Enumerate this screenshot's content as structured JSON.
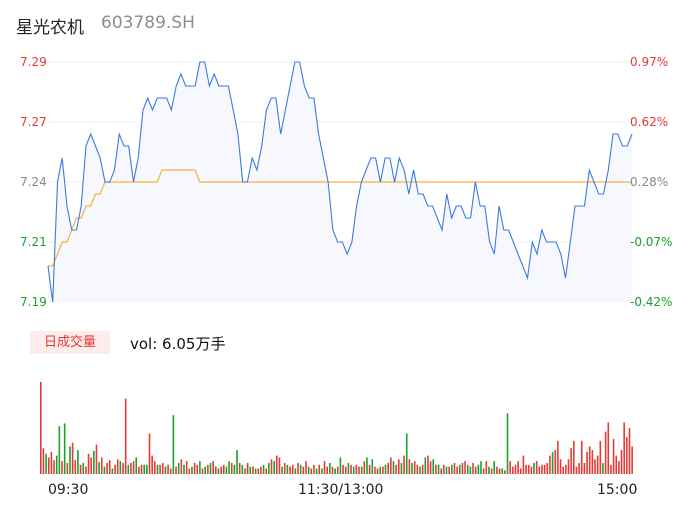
{
  "header": {
    "name": "星光农机",
    "code": "603789.SH"
  },
  "volume_panel": {
    "badge_label": "日成交量",
    "vol_text": "vol: 6.05万手"
  },
  "colors": {
    "price_line": "#3b7be0",
    "avg_line": "#f5b13d",
    "up": "#e53935",
    "down": "#18a12c",
    "area_fill": "#f6f8fd",
    "neutral_text": "#888888"
  },
  "chart_data": [
    {
      "type": "line",
      "title": "",
      "y_left_ticks": [
        "7.29",
        "7.27",
        "7.24",
        "7.21",
        "7.19"
      ],
      "y_right_ticks": [
        "0.97%",
        "0.62%",
        "0.28%",
        "-0.07%",
        "-0.42%"
      ],
      "ylim": [
        7.19,
        7.29
      ],
      "x_ticks": [
        "09:30",
        "11:30/13:00",
        "15:00"
      ],
      "series": [
        {
          "role": "price",
          "values": [
            7.205,
            7.19,
            7.24,
            7.25,
            7.23,
            7.22,
            7.22,
            7.23,
            7.255,
            7.26,
            7.255,
            7.25,
            7.24,
            7.24,
            7.245,
            7.26,
            7.255,
            7.255,
            7.24,
            7.25,
            7.27,
            7.275,
            7.27,
            7.275,
            7.275,
            7.275,
            7.27,
            7.28,
            7.285,
            7.28,
            7.28,
            7.28,
            7.29,
            7.29,
            7.28,
            7.285,
            7.28,
            7.28,
            7.28,
            7.27,
            7.26,
            7.24,
            7.24,
            7.25,
            7.245,
            7.255,
            7.27,
            7.275,
            7.275,
            7.26,
            7.27,
            7.28,
            7.29,
            7.29,
            7.28,
            7.275,
            7.275,
            7.26,
            7.25,
            7.24,
            7.22,
            7.215,
            7.215,
            7.21,
            7.215,
            7.23,
            7.24,
            7.245,
            7.25,
            7.25,
            7.24,
            7.25,
            7.25,
            7.24,
            7.25,
            7.245,
            7.235,
            7.245,
            7.235,
            7.235,
            7.23,
            7.23,
            7.225,
            7.22,
            7.235,
            7.225,
            7.23,
            7.23,
            7.225,
            7.225,
            7.24,
            7.23,
            7.23,
            7.215,
            7.21,
            7.23,
            7.22,
            7.22,
            7.215,
            7.21,
            7.205,
            7.2,
            7.215,
            7.21,
            7.22,
            7.215,
            7.215,
            7.215,
            7.21,
            7.2,
            7.215,
            7.23,
            7.23,
            7.23,
            7.245,
            7.24,
            7.235,
            7.235,
            7.245,
            7.26,
            7.26,
            7.255,
            7.255,
            7.26
          ]
        },
        {
          "role": "average",
          "values": [
            7.205,
            7.205,
            7.21,
            7.215,
            7.215,
            7.22,
            7.225,
            7.225,
            7.23,
            7.23,
            7.235,
            7.235,
            7.24,
            7.24,
            7.24,
            7.24,
            7.24,
            7.24,
            7.24,
            7.24,
            7.24,
            7.24,
            7.24,
            7.24,
            7.245,
            7.245,
            7.245,
            7.245,
            7.245,
            7.245,
            7.245,
            7.245,
            7.24,
            7.24,
            7.24,
            7.24,
            7.24,
            7.24,
            7.24,
            7.24,
            7.24,
            7.24,
            7.24,
            7.24,
            7.24,
            7.24,
            7.24,
            7.24,
            7.24,
            7.24,
            7.24,
            7.24,
            7.24,
            7.24,
            7.24,
            7.24,
            7.24,
            7.24,
            7.24,
            7.24,
            7.24,
            7.24,
            7.24,
            7.24,
            7.24,
            7.24,
            7.24,
            7.24,
            7.24,
            7.24,
            7.24,
            7.24,
            7.24,
            7.24,
            7.24,
            7.24,
            7.24,
            7.24,
            7.24,
            7.24,
            7.24,
            7.24,
            7.24,
            7.24,
            7.24,
            7.24,
            7.24,
            7.24,
            7.24,
            7.24,
            7.24,
            7.24,
            7.24,
            7.24,
            7.24,
            7.24,
            7.24,
            7.24,
            7.24,
            7.24,
            7.24,
            7.24,
            7.24,
            7.24,
            7.24,
            7.24,
            7.24,
            7.24,
            7.24,
            7.24,
            7.24,
            7.24,
            7.24,
            7.24,
            7.24,
            7.24,
            7.24,
            7.24,
            7.24,
            7.24,
            7.24,
            7.24,
            7.24,
            7.24
          ]
        }
      ]
    },
    {
      "type": "bar",
      "title": "",
      "ylim": [
        0,
        100
      ],
      "values": [
        100,
        28,
        22,
        18,
        24,
        15,
        20,
        52,
        14,
        55,
        12,
        30,
        34,
        15,
        26,
        10,
        12,
        8,
        22,
        18,
        25,
        32,
        13,
        18,
        8,
        12,
        15,
        6,
        10,
        16,
        14,
        12,
        82,
        10,
        12,
        14,
        18,
        8,
        10,
        10,
        10,
        44,
        20,
        14,
        10,
        10,
        12,
        8,
        10,
        6,
        64,
        8,
        12,
        16,
        10,
        14,
        6,
        8,
        12,
        10,
        14,
        6,
        8,
        10,
        12,
        14,
        8,
        6,
        8,
        10,
        8,
        14,
        12,
        10,
        26,
        12,
        10,
        6,
        12,
        8,
        8,
        6,
        6,
        8,
        10,
        6,
        12,
        16,
        14,
        20,
        18,
        8,
        12,
        10,
        8,
        10,
        6,
        12,
        10,
        8,
        14,
        8,
        6,
        10,
        6,
        10,
        6,
        14,
        8,
        12,
        8,
        6,
        8,
        18,
        10,
        8,
        12,
        10,
        8,
        10,
        8,
        8,
        14,
        18,
        10,
        16,
        8,
        6,
        8,
        8,
        10,
        12,
        18,
        14,
        10,
        16,
        12,
        20,
        44,
        16,
        12,
        14,
        10,
        8,
        10,
        18,
        20,
        14,
        16,
        10,
        10,
        6,
        10,
        8,
        8,
        10,
        12,
        8,
        10,
        12,
        14,
        10,
        8,
        12,
        8,
        10,
        14,
        6,
        14,
        8,
        6,
        14,
        8,
        6,
        6,
        4,
        66,
        14,
        8,
        10,
        14,
        6,
        20,
        10,
        10,
        8,
        12,
        14,
        8,
        10,
        10,
        12,
        20,
        24,
        26,
        36,
        16,
        8,
        10,
        16,
        28,
        36,
        8,
        12,
        36,
        12,
        24,
        30,
        26,
        16,
        20,
        36,
        12,
        46,
        56,
        10,
        38,
        20,
        14,
        26,
        56,
        40,
        50,
        30
      ],
      "value_colors": [
        "up",
        "up",
        "down",
        "up",
        "up",
        "up",
        "down",
        "down",
        "up",
        "down",
        "up",
        "down",
        "up",
        "up",
        "down",
        "up",
        "down",
        "up",
        "up",
        "up",
        "down",
        "up",
        "down",
        "up",
        "down",
        "up",
        "up",
        "down",
        "up",
        "up",
        "down",
        "up",
        "up",
        "down",
        "up",
        "up",
        "down",
        "up",
        "up",
        "down",
        "down",
        "up",
        "up",
        "up",
        "down",
        "up",
        "up",
        "down",
        "up",
        "up",
        "down",
        "up",
        "down",
        "up",
        "down",
        "up",
        "up",
        "down",
        "up",
        "up",
        "down",
        "up",
        "down",
        "up",
        "down",
        "up",
        "up",
        "down",
        "up",
        "up",
        "down",
        "down",
        "up",
        "down",
        "down",
        "up",
        "down",
        "up",
        "up",
        "down",
        "up",
        "down",
        "up",
        "up",
        "down",
        "up",
        "down",
        "up",
        "down",
        "up",
        "up",
        "down",
        "up",
        "down",
        "up",
        "up",
        "down",
        "up",
        "down",
        "up",
        "up",
        "down",
        "up",
        "up",
        "down",
        "up",
        "down",
        "up",
        "up",
        "down",
        "up",
        "down",
        "up",
        "down",
        "up",
        "up",
        "down",
        "up",
        "down",
        "up",
        "up",
        "down",
        "up",
        "down",
        "up",
        "down",
        "up",
        "up",
        "down",
        "up",
        "down",
        "up",
        "up",
        "down",
        "up",
        "up",
        "down",
        "up",
        "down",
        "up",
        "down",
        "up",
        "up",
        "down",
        "up",
        "down",
        "up",
        "up",
        "down",
        "up",
        "down",
        "up",
        "up",
        "down",
        "up",
        "down",
        "up",
        "up",
        "down",
        "up",
        "up",
        "down",
        "down",
        "up",
        "up",
        "down",
        "down",
        "up",
        "up",
        "down",
        "up",
        "down",
        "up",
        "up",
        "down",
        "up",
        "down",
        "up",
        "up",
        "up",
        "up",
        "up",
        "up",
        "up",
        "up",
        "up",
        "down",
        "up",
        "up",
        "up",
        "up",
        "up",
        "up",
        "down",
        "up",
        "up",
        "up",
        "up",
        "up",
        "up",
        "up",
        "up",
        "up",
        "up",
        "up",
        "up",
        "up",
        "up",
        "up",
        "up",
        "up",
        "up",
        "down",
        "up",
        "up",
        "up",
        "up",
        "up",
        "up",
        "up",
        "up",
        "up",
        "up",
        "up",
        "up"
      ]
    }
  ]
}
